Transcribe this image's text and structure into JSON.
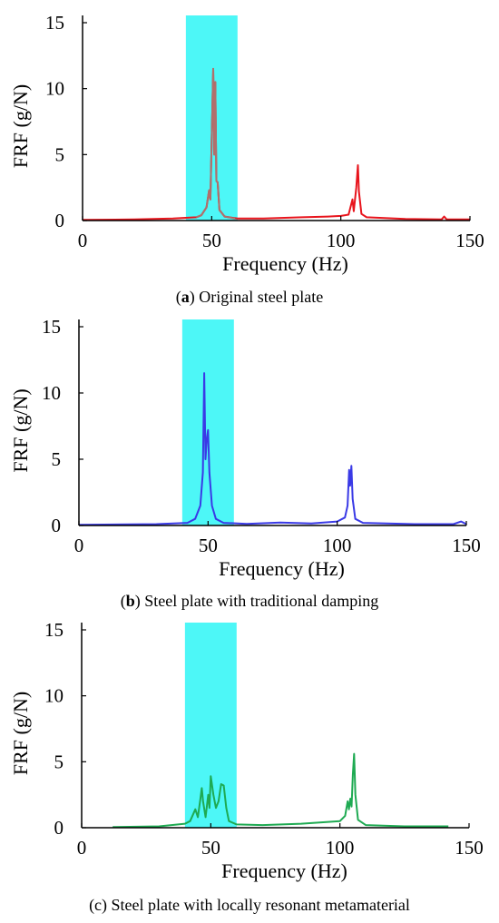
{
  "chart_data": [
    {
      "type": "line",
      "caption": {
        "prefix": "(",
        "letter": "a",
        "text": ") Original steel plate"
      },
      "xlabel": "Frequency (Hz)",
      "ylabel": "FRF (g/N)",
      "xlim": [
        0,
        150
      ],
      "ylim": [
        0,
        15
      ],
      "xticks": [
        "0",
        "50",
        "100",
        "150"
      ],
      "yticks": [
        "0",
        "5",
        "10",
        "15"
      ],
      "band": {
        "x0": 40,
        "x1": 60,
        "color": "#4df7f7"
      },
      "series": [
        {
          "color": "#e8141c",
          "points": [
            [
              0,
              0.05
            ],
            [
              20,
              0.08
            ],
            [
              35,
              0.15
            ],
            [
              44,
              0.25
            ],
            [
              46,
              0.4
            ],
            [
              48,
              1.0
            ],
            [
              49,
              2.3
            ],
            [
              49.5,
              1.6
            ],
            [
              50,
              6.0
            ],
            [
              50.6,
              11.5
            ],
            [
              51,
              5.0
            ],
            [
              51.4,
              10.5
            ],
            [
              51.8,
              3.0
            ],
            [
              52.3,
              2.9
            ],
            [
              53,
              0.8
            ],
            [
              55,
              0.3
            ],
            [
              60,
              0.15
            ],
            [
              70,
              0.15
            ],
            [
              85,
              0.25
            ],
            [
              95,
              0.3
            ],
            [
              100,
              0.35
            ],
            [
              103,
              0.45
            ],
            [
              104.5,
              1.6
            ],
            [
              105,
              0.7
            ],
            [
              106,
              2.5
            ],
            [
              106.6,
              4.2
            ],
            [
              107,
              2.2
            ],
            [
              108,
              0.5
            ],
            [
              110,
              0.25
            ],
            [
              125,
              0.12
            ],
            [
              139,
              0.08
            ],
            [
              140,
              0.3
            ],
            [
              141,
              0.08
            ],
            [
              150,
              0.08
            ]
          ]
        },
        {
          "color": "#b0706c",
          "points": [
            [
              44,
              0.25
            ],
            [
              46,
              0.4
            ],
            [
              48,
              1.0
            ],
            [
              49,
              2.3
            ],
            [
              49.5,
              1.6
            ],
            [
              50,
              6.0
            ],
            [
              50.6,
              11.5
            ],
            [
              51,
              5.0
            ],
            [
              51.4,
              10.5
            ],
            [
              51.8,
              3.0
            ],
            [
              52.3,
              2.9
            ],
            [
              53,
              0.8
            ],
            [
              55,
              0.3
            ],
            [
              59,
              0.15
            ]
          ]
        }
      ]
    },
    {
      "type": "line",
      "caption": {
        "prefix": "(",
        "letter": "b",
        "text": ") Steel plate with traditional damping"
      },
      "xlabel": "Frequency (Hz)",
      "ylabel": "FRF (g/N)",
      "xlim": [
        0,
        150
      ],
      "ylim": [
        0,
        15
      ],
      "xticks": [
        "0",
        "50",
        "100",
        "150"
      ],
      "yticks": [
        "0",
        "5",
        "10",
        "15"
      ],
      "band": {
        "x0": 40,
        "x1": 60,
        "color": "#4df7f7"
      },
      "series": [
        {
          "color": "#3a3ae6",
          "points": [
            [
              0,
              0.05
            ],
            [
              30,
              0.1
            ],
            [
              42,
              0.2
            ],
            [
              45,
              0.5
            ],
            [
              47,
              1.5
            ],
            [
              48,
              4.0
            ],
            [
              48.5,
              11.5
            ],
            [
              49,
              5.0
            ],
            [
              49.5,
              6.5
            ],
            [
              50,
              7.2
            ],
            [
              50.5,
              4.0
            ],
            [
              51.5,
              1.5
            ],
            [
              53,
              0.5
            ],
            [
              56,
              0.2
            ],
            [
              65,
              0.12
            ],
            [
              78,
              0.22
            ],
            [
              90,
              0.15
            ],
            [
              100,
              0.3
            ],
            [
              103,
              0.6
            ],
            [
              104,
              1.5
            ],
            [
              104.6,
              4.2
            ],
            [
              105,
              3.0
            ],
            [
              105.5,
              4.5
            ],
            [
              106,
              2.0
            ],
            [
              107,
              0.5
            ],
            [
              110,
              0.2
            ],
            [
              130,
              0.1
            ],
            [
              145,
              0.1
            ],
            [
              148,
              0.3
            ],
            [
              150,
              0.1
            ]
          ]
        }
      ]
    },
    {
      "type": "line",
      "caption": {
        "prefix": "(c) ",
        "letter": "",
        "text": "Steel plate with locally resonant metamaterial"
      },
      "xlabel": "Frequency (Hz)",
      "ylabel": "FRF (g/N)",
      "xlim": [
        0,
        150
      ],
      "ylim": [
        0,
        15
      ],
      "xticks": [
        "0",
        "50",
        "100",
        "150"
      ],
      "yticks": [
        "0",
        "5",
        "10",
        "15"
      ],
      "band": {
        "x0": 40,
        "x1": 60,
        "color": "#4df7f7"
      },
      "series": [
        {
          "color": "#1eaa52",
          "points": [
            [
              12,
              0.05
            ],
            [
              30,
              0.1
            ],
            [
              40,
              0.3
            ],
            [
              42,
              0.5
            ],
            [
              44,
              1.4
            ],
            [
              45,
              0.8
            ],
            [
              46,
              2.2
            ],
            [
              46.5,
              3.0
            ],
            [
              47,
              2.0
            ],
            [
              48,
              0.8
            ],
            [
              49,
              2.5
            ],
            [
              49.5,
              1.5
            ],
            [
              50,
              3.9
            ],
            [
              51,
              2.5
            ],
            [
              52,
              1.5
            ],
            [
              53,
              2.0
            ],
            [
              54,
              3.3
            ],
            [
              55,
              3.2
            ],
            [
              56,
              1.5
            ],
            [
              57,
              0.5
            ],
            [
              60,
              0.25
            ],
            [
              70,
              0.2
            ],
            [
              85,
              0.3
            ],
            [
              100,
              0.5
            ],
            [
              102,
              0.9
            ],
            [
              103,
              2.0
            ],
            [
              103.5,
              1.4
            ],
            [
              104,
              2.2
            ],
            [
              104.5,
              1.6
            ],
            [
              105,
              4.0
            ],
            [
              105.5,
              5.6
            ],
            [
              106,
              2.5
            ],
            [
              107,
              0.6
            ],
            [
              110,
              0.2
            ],
            [
              125,
              0.1
            ],
            [
              142,
              0.1
            ]
          ]
        }
      ]
    }
  ]
}
